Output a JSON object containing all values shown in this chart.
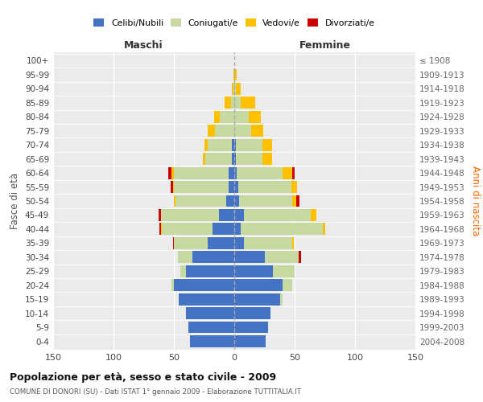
{
  "age_groups": [
    "0-4",
    "5-9",
    "10-14",
    "15-19",
    "20-24",
    "25-29",
    "30-34",
    "35-39",
    "40-44",
    "45-49",
    "50-54",
    "55-59",
    "60-64",
    "65-69",
    "70-74",
    "75-79",
    "80-84",
    "85-89",
    "90-94",
    "95-99",
    "100+"
  ],
  "birth_years": [
    "2004-2008",
    "1999-2003",
    "1994-1998",
    "1989-1993",
    "1984-1988",
    "1979-1983",
    "1974-1978",
    "1969-1973",
    "1964-1968",
    "1959-1963",
    "1954-1958",
    "1949-1953",
    "1944-1948",
    "1939-1943",
    "1934-1938",
    "1929-1933",
    "1924-1928",
    "1919-1923",
    "1914-1918",
    "1909-1913",
    "≤ 1908"
  ],
  "colors": {
    "celibe": "#4472c4",
    "coniugato": "#c6d9a0",
    "vedovo": "#ffc000",
    "divorziato": "#cc0000"
  },
  "maschi": {
    "celibe": [
      37,
      38,
      40,
      46,
      50,
      40,
      35,
      22,
      18,
      13,
      7,
      5,
      5,
      2,
      2,
      0,
      0,
      0,
      0,
      0,
      0
    ],
    "coniugato": [
      0,
      0,
      0,
      0,
      2,
      5,
      12,
      28,
      42,
      48,
      42,
      45,
      45,
      22,
      20,
      16,
      12,
      3,
      1,
      0,
      0
    ],
    "vedovo": [
      0,
      0,
      0,
      0,
      0,
      0,
      0,
      0,
      1,
      0,
      1,
      1,
      2,
      2,
      3,
      6,
      5,
      5,
      1,
      1,
      0
    ],
    "divorziato": [
      0,
      0,
      0,
      0,
      0,
      0,
      0,
      1,
      1,
      2,
      0,
      2,
      3,
      0,
      0,
      0,
      0,
      0,
      0,
      0,
      0
    ]
  },
  "femmine": {
    "nubile": [
      26,
      28,
      30,
      38,
      40,
      32,
      25,
      8,
      5,
      8,
      4,
      3,
      2,
      1,
      1,
      0,
      0,
      0,
      0,
      0,
      0
    ],
    "coniugata": [
      0,
      0,
      0,
      2,
      8,
      18,
      28,
      40,
      68,
      55,
      44,
      44,
      38,
      22,
      22,
      14,
      12,
      5,
      1,
      0,
      0
    ],
    "vedova": [
      0,
      0,
      0,
      0,
      0,
      0,
      0,
      1,
      2,
      5,
      3,
      5,
      8,
      8,
      8,
      10,
      10,
      12,
      4,
      2,
      0
    ],
    "divorziata": [
      0,
      0,
      0,
      0,
      0,
      0,
      2,
      0,
      0,
      0,
      3,
      0,
      2,
      0,
      0,
      0,
      0,
      0,
      0,
      0,
      0
    ]
  },
  "xlim": [
    -150,
    150
  ],
  "xticks": [
    -150,
    -100,
    -50,
    0,
    50,
    100,
    150
  ],
  "xticklabels": [
    "150",
    "100",
    "50",
    "0",
    "50",
    "100",
    "150"
  ],
  "title": "Popolazione per età, sesso e stato civile - 2009",
  "subtitle": "COMUNE DI DONORI (SU) - Dati ISTAT 1° gennaio 2009 - Elaborazione TUTTITALIA.IT",
  "ylabel_left": "Fasce di età",
  "ylabel_right": "Anni di nascita",
  "label_maschi": "Maschi",
  "label_femmine": "Femmine",
  "legend_labels": [
    "Celibi/Nubili",
    "Coniugati/e",
    "Vedovi/e",
    "Divorziati/e"
  ],
  "bg_color": "#ebebeb",
  "bar_height": 0.85
}
